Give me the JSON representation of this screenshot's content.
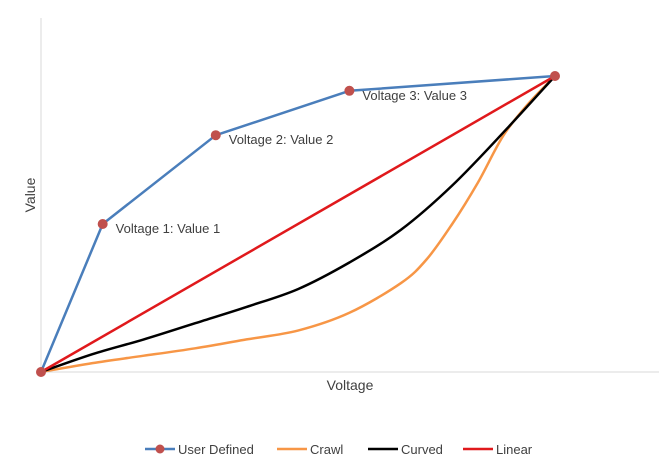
{
  "chart_data": {
    "type": "line",
    "title": "",
    "xlabel": "Voltage",
    "ylabel": "Value",
    "xlim": [
      0,
      1
    ],
    "ylim": [
      0,
      1
    ],
    "grid": false,
    "legend_position": "bottom",
    "tick_labels_shown": false,
    "series": [
      {
        "name": "User Defined",
        "color": "#4a7ebb",
        "marker": "circle",
        "marker_color": "#c0504d",
        "points": [
          {
            "x": 0.0,
            "y": 0.0
          },
          {
            "x": 0.12,
            "y": 0.5,
            "label": "Voltage 1: Value 1"
          },
          {
            "x": 0.34,
            "y": 0.8,
            "label": "Voltage 2: Value 2"
          },
          {
            "x": 0.6,
            "y": 0.95,
            "label": "Voltage 3: Value 3"
          },
          {
            "x": 1.0,
            "y": 1.0
          }
        ]
      },
      {
        "name": "Crawl",
        "color": "#f79646",
        "points": [
          {
            "x": 0.0,
            "y": 0.0
          },
          {
            "x": 0.1,
            "y": 0.03
          },
          {
            "x": 0.2,
            "y": 0.055
          },
          {
            "x": 0.3,
            "y": 0.08
          },
          {
            "x": 0.4,
            "y": 0.11
          },
          {
            "x": 0.5,
            "y": 0.14
          },
          {
            "x": 0.6,
            "y": 0.2
          },
          {
            "x": 0.7,
            "y": 0.3
          },
          {
            "x": 0.75,
            "y": 0.38
          },
          {
            "x": 0.8,
            "y": 0.5
          },
          {
            "x": 0.85,
            "y": 0.64
          },
          {
            "x": 0.9,
            "y": 0.8
          },
          {
            "x": 0.95,
            "y": 0.91
          },
          {
            "x": 1.0,
            "y": 1.0
          }
        ]
      },
      {
        "name": "Curved",
        "color": "#000000",
        "points": [
          {
            "x": 0.0,
            "y": 0.0
          },
          {
            "x": 0.1,
            "y": 0.06
          },
          {
            "x": 0.2,
            "y": 0.11
          },
          {
            "x": 0.3,
            "y": 0.165
          },
          {
            "x": 0.4,
            "y": 0.22
          },
          {
            "x": 0.5,
            "y": 0.28
          },
          {
            "x": 0.6,
            "y": 0.37
          },
          {
            "x": 0.7,
            "y": 0.48
          },
          {
            "x": 0.8,
            "y": 0.63
          },
          {
            "x": 0.9,
            "y": 0.81
          },
          {
            "x": 1.0,
            "y": 1.0
          }
        ]
      },
      {
        "name": "Linear",
        "color": "#e0191c",
        "points": [
          {
            "x": 0.0,
            "y": 0.0
          },
          {
            "x": 1.0,
            "y": 1.0
          }
        ]
      }
    ]
  }
}
